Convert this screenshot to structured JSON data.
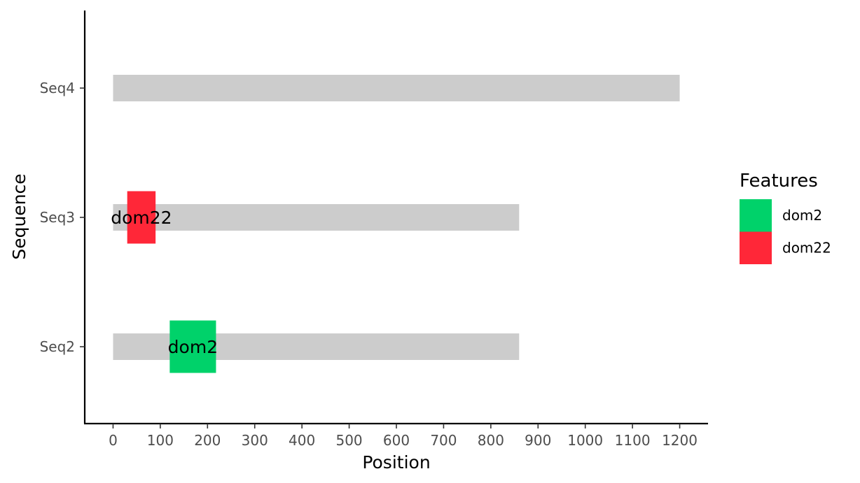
{
  "chart_data": {
    "type": "bar",
    "orientation": "horizontal",
    "xlabel": "Position",
    "ylabel": "Sequence",
    "xlim": [
      -60,
      1260
    ],
    "x_ticks": [
      0,
      100,
      200,
      300,
      400,
      500,
      600,
      700,
      800,
      900,
      1000,
      1100,
      1200
    ],
    "grid": false,
    "categories": [
      "Seq2",
      "Seq3",
      "Seq4"
    ],
    "sequences": [
      {
        "name": "Seq2",
        "start": 0,
        "end": 860
      },
      {
        "name": "Seq3",
        "start": 0,
        "end": 860
      },
      {
        "name": "Seq4",
        "start": 0,
        "end": 1200
      }
    ],
    "features": [
      {
        "sequence": "Seq2",
        "name": "dom2",
        "start": 120,
        "end": 218,
        "label": "dom2"
      },
      {
        "sequence": "Seq3",
        "name": "dom22",
        "start": 30,
        "end": 90,
        "label": "dom22"
      }
    ],
    "legend": {
      "title": "Features",
      "position": "right",
      "items": [
        {
          "name": "dom2",
          "color": "#00D26A"
        },
        {
          "name": "dom22",
          "color": "#FF2738"
        }
      ]
    },
    "colors": {
      "sequence_bar": "#CCCCCC",
      "axis": "#000000",
      "tick_text": "#4D4D4D"
    }
  }
}
